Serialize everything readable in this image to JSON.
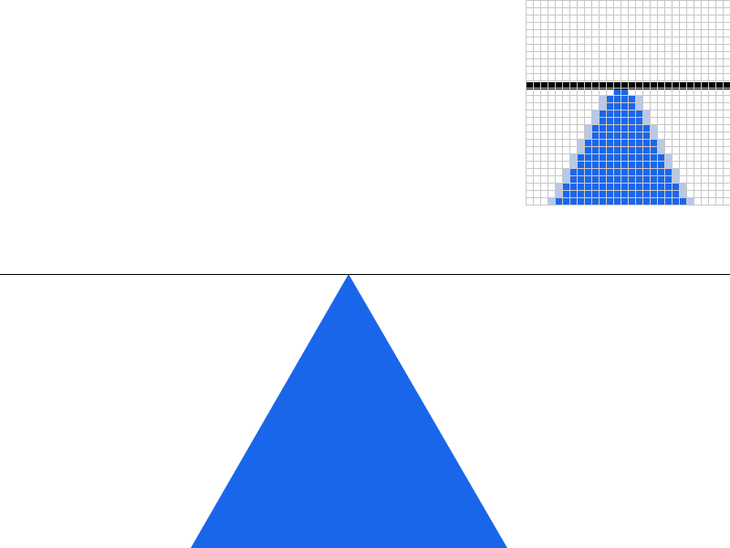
{
  "colors": {
    "background": "#ffffff",
    "triangle_fill": "#1a66eb",
    "edge_pixel": "#b7c8ea",
    "line": "#000000",
    "grid_line": "#c8c8c8"
  },
  "magnifier": {
    "zoom_factor": 8
  }
}
